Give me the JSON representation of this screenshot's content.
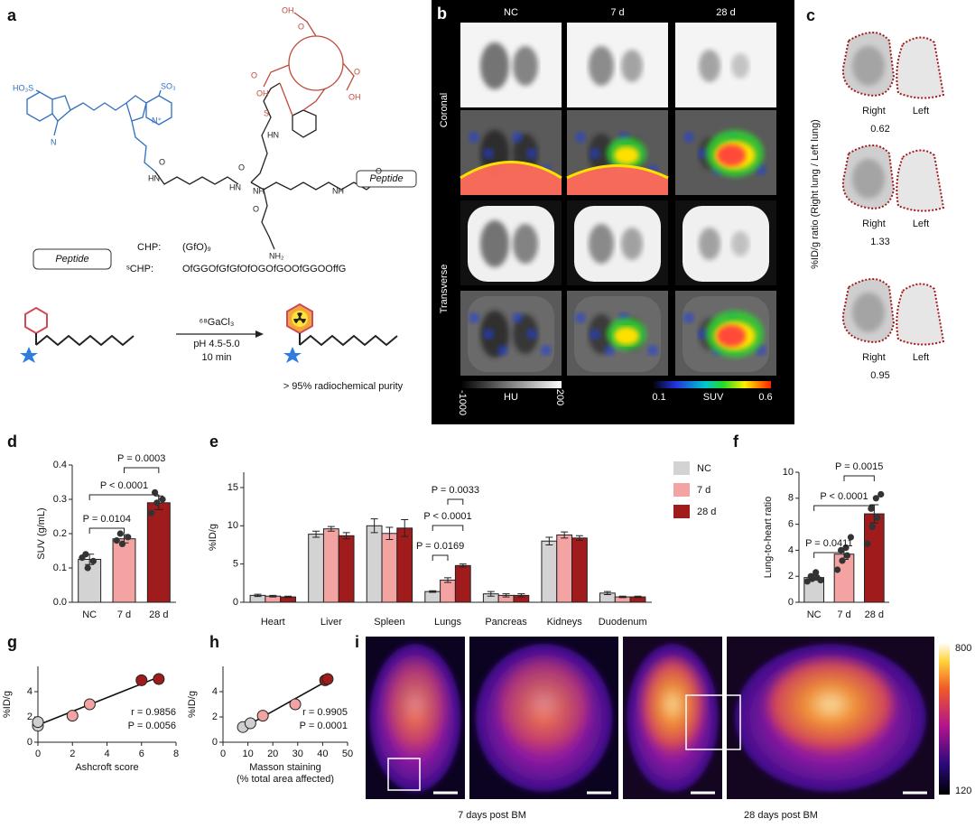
{
  "panel_labels": [
    "a",
    "b",
    "c",
    "d",
    "e",
    "f",
    "g",
    "h",
    "i"
  ],
  "panel_a": {
    "atoms": [
      "HO₃S",
      "SO₃",
      "N",
      "N⁺",
      "HN",
      "O",
      "HN",
      "O",
      "NH",
      "O",
      "HN",
      "NH",
      "S",
      "NH₂",
      "O",
      "OH",
      "OH",
      "OH",
      "O",
      "O",
      "O"
    ],
    "peptide_box": "Peptide",
    "peptide_key": "Peptide",
    "sequences": [
      {
        "name": "CHP:",
        "seq": "(GfO)₉"
      },
      {
        "name": "ˢCHP:",
        "seq": "OfGGOfGfGfOfOGOfGOOfGGOOffG"
      }
    ],
    "reagent": "⁶⁸GaCl₃",
    "conditions": [
      "pH 4.5-5.0",
      "10 min"
    ],
    "product_note": "> 95% radiochemical purity"
  },
  "panel_b": {
    "columns": [
      "NC",
      "7 d",
      "28 d"
    ],
    "rows": [
      "Coronal",
      "Transverse"
    ],
    "hu_bar": {
      "min": -1000,
      "label": "HU",
      "max": 200
    },
    "suv_bar": {
      "min": 0.1,
      "label": "SUV",
      "max": 0.6
    }
  },
  "panel_f": {
    "ylabel": "%ID/g ratio (Right lung / Left lung)",
    "pairs": [
      {
        "right": "Right",
        "left": "Left",
        "ratio": 0.62
      },
      {
        "right": "Right",
        "left": "Left",
        "ratio": 1.33
      },
      {
        "right": "Right",
        "left": "Left",
        "ratio": 0.95
      }
    ]
  },
  "panel_i": {
    "colorbar": {
      "max": 800,
      "min": 120
    },
    "captions": [
      "7 days post BM",
      "28 days post BM"
    ]
  },
  "chart_data": [
    {
      "type": "bar",
      "ylabel": "SUV (g/mL)",
      "categories": [
        "NC",
        "7 d",
        "28 d"
      ],
      "values": [
        0.125,
        0.185,
        0.29
      ],
      "errors": [
        0.015,
        0.012,
        0.02
      ],
      "points": [
        [
          0.13,
          0.1,
          0.12,
          0.14
        ],
        [
          0.18,
          0.17,
          0.19,
          0.2
        ],
        [
          0.26,
          0.29,
          0.3,
          0.32
        ]
      ],
      "colors": [
        "#d3d3d3",
        "#f4a3a3",
        "#a01c1c"
      ],
      "ylim": [
        0,
        0.4
      ],
      "yticks": [
        {
          "value": 0,
          "label": "0.0"
        },
        0.1,
        0.2,
        0.3,
        0.4
      ],
      "annotations": [
        "P = 0.0104",
        "P < 0.0001",
        "P = 0.0003"
      ]
    },
    {
      "type": "grouped-bar",
      "ylabel": "%ID/g",
      "categories": [
        "Heart",
        "Liver",
        "Spleen",
        "Lungs",
        "Pancreas",
        "Kidneys",
        "Duodenum"
      ],
      "series": [
        {
          "name": "NC",
          "color": "#d3d3d3",
          "values": [
            0.9,
            8.9,
            10.0,
            1.4,
            1.1,
            8.0,
            1.2
          ],
          "errors": [
            0.15,
            0.4,
            0.9,
            0.1,
            0.3,
            0.5,
            0.2
          ]
        },
        {
          "name": "7 d",
          "color": "#f4a3a3",
          "values": [
            0.8,
            9.6,
            9.0,
            2.9,
            0.9,
            8.8,
            0.7
          ],
          "errors": [
            0.1,
            0.3,
            0.8,
            0.3,
            0.2,
            0.4,
            0.1
          ]
        },
        {
          "name": "28 d",
          "color": "#a01c1c",
          "values": [
            0.7,
            8.7,
            9.7,
            4.8,
            0.9,
            8.4,
            0.7
          ],
          "errors": [
            0.1,
            0.4,
            1.1,
            0.2,
            0.2,
            0.3,
            0.1
          ]
        }
      ],
      "ylim": [
        0,
        17
      ],
      "yticks": [
        0,
        5,
        10,
        15
      ],
      "legend": "right",
      "annotations": [
        "P = 0.0169",
        "P < 0.0001",
        "P = 0.0033"
      ]
    },
    {
      "type": "bar",
      "ylabel": "Lung-to-heart ratio",
      "categories": [
        "NC",
        "7 d",
        "28 d"
      ],
      "values": [
        1.9,
        3.7,
        6.8
      ],
      "errors": [
        0.2,
        0.4,
        0.7
      ],
      "points": [
        [
          1.6,
          1.8,
          1.9,
          2.0,
          2.3,
          1.7
        ],
        [
          2.5,
          3.2,
          3.6,
          4.0,
          4.2,
          5.0
        ],
        [
          4.5,
          5.8,
          6.5,
          7.2,
          8.0,
          8.3
        ]
      ],
      "colors": [
        "#d3d3d3",
        "#f4a3a3",
        "#a01c1c"
      ],
      "ylim": [
        0,
        10
      ],
      "yticks": [
        0,
        2,
        4,
        6,
        8,
        10
      ],
      "annotations": [
        "P = 0.0411",
        "P < 0.0001",
        "P = 0.0015"
      ]
    },
    {
      "type": "scatter",
      "ylabel": "%ID/g",
      "xlabel": "Ashcroft score",
      "series": [
        {
          "color": "#cfcfcf",
          "x": [
            0,
            0
          ],
          "values": [
            1.3,
            1.6
          ]
        },
        {
          "color": "#f4a3a3",
          "x": [
            2,
            3
          ],
          "values": [
            2.1,
            3.0
          ]
        },
        {
          "color": "#a01c1c",
          "x": [
            6,
            7
          ],
          "values": [
            4.9,
            5.0
          ]
        }
      ],
      "xlim": [
        0,
        8
      ],
      "xticks": [
        0,
        2,
        4,
        6,
        8
      ],
      "ylim": [
        0,
        6
      ],
      "yticks": [
        0,
        2,
        4
      ],
      "annotations": [
        "r = 0.9856",
        "P = 0.0056"
      ]
    },
    {
      "type": "scatter",
      "ylabel": "%ID/g",
      "xlabel": [
        "Masson staining",
        "(% total area affected)"
      ],
      "series": [
        {
          "color": "#cfcfcf",
          "x": [
            8,
            11
          ],
          "values": [
            1.2,
            1.5
          ]
        },
        {
          "color": "#f4a3a3",
          "x": [
            16,
            29
          ],
          "values": [
            2.1,
            3.0
          ]
        },
        {
          "color": "#a01c1c",
          "x": [
            41,
            42
          ],
          "values": [
            4.9,
            5.0
          ]
        }
      ],
      "xlim": [
        0,
        50
      ],
      "xticks": [
        0,
        10,
        20,
        30,
        40,
        50
      ],
      "ylim": [
        0,
        6
      ],
      "yticks": [
        0,
        2,
        4
      ],
      "annotations": [
        "r = 0.9905",
        "P = 0.0001"
      ]
    }
  ]
}
